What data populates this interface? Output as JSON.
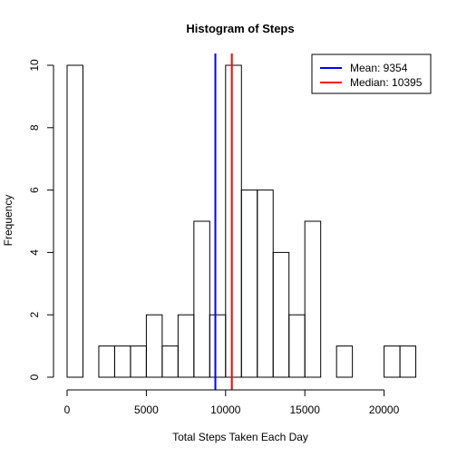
{
  "chart_data": {
    "type": "histogram",
    "title": "Histogram of Steps",
    "xlabel": "Total Steps Taken Each Day",
    "ylabel": "Frequency",
    "xlim": [
      0,
      22000
    ],
    "ylim": [
      0,
      10
    ],
    "bin_width": 1000,
    "bins": [
      {
        "x0": 0,
        "x1": 1000,
        "count": 10
      },
      {
        "x0": 1000,
        "x1": 2000,
        "count": 0
      },
      {
        "x0": 2000,
        "x1": 3000,
        "count": 1
      },
      {
        "x0": 3000,
        "x1": 4000,
        "count": 1
      },
      {
        "x0": 4000,
        "x1": 5000,
        "count": 1
      },
      {
        "x0": 5000,
        "x1": 6000,
        "count": 2
      },
      {
        "x0": 6000,
        "x1": 7000,
        "count": 1
      },
      {
        "x0": 7000,
        "x1": 8000,
        "count": 2
      },
      {
        "x0": 8000,
        "x1": 9000,
        "count": 5
      },
      {
        "x0": 9000,
        "x1": 10000,
        "count": 2
      },
      {
        "x0": 10000,
        "x1": 11000,
        "count": 10
      },
      {
        "x0": 11000,
        "x1": 12000,
        "count": 6
      },
      {
        "x0": 12000,
        "x1": 13000,
        "count": 6
      },
      {
        "x0": 13000,
        "x1": 14000,
        "count": 4
      },
      {
        "x0": 14000,
        "x1": 15000,
        "count": 2
      },
      {
        "x0": 15000,
        "x1": 16000,
        "count": 5
      },
      {
        "x0": 16000,
        "x1": 17000,
        "count": 0
      },
      {
        "x0": 17000,
        "x1": 18000,
        "count": 1
      },
      {
        "x0": 18000,
        "x1": 19000,
        "count": 0
      },
      {
        "x0": 19000,
        "x1": 20000,
        "count": 0
      },
      {
        "x0": 20000,
        "x1": 21000,
        "count": 1
      },
      {
        "x0": 21000,
        "x1": 22000,
        "count": 1
      }
    ],
    "x_ticks": [
      0,
      5000,
      10000,
      15000,
      20000
    ],
    "y_ticks": [
      0,
      2,
      4,
      6,
      8,
      10
    ],
    "vlines": [
      {
        "name": "Mean",
        "value": 9354,
        "color": "#0000ff"
      },
      {
        "name": "Median",
        "value": 10395,
        "color": "#ff0000"
      }
    ],
    "legend": {
      "position": "top-right",
      "entries": [
        {
          "label": "Mean: 9354",
          "color": "#0000ff"
        },
        {
          "label": "Median: 10395",
          "color": "#ff0000"
        }
      ]
    },
    "grid": false
  }
}
